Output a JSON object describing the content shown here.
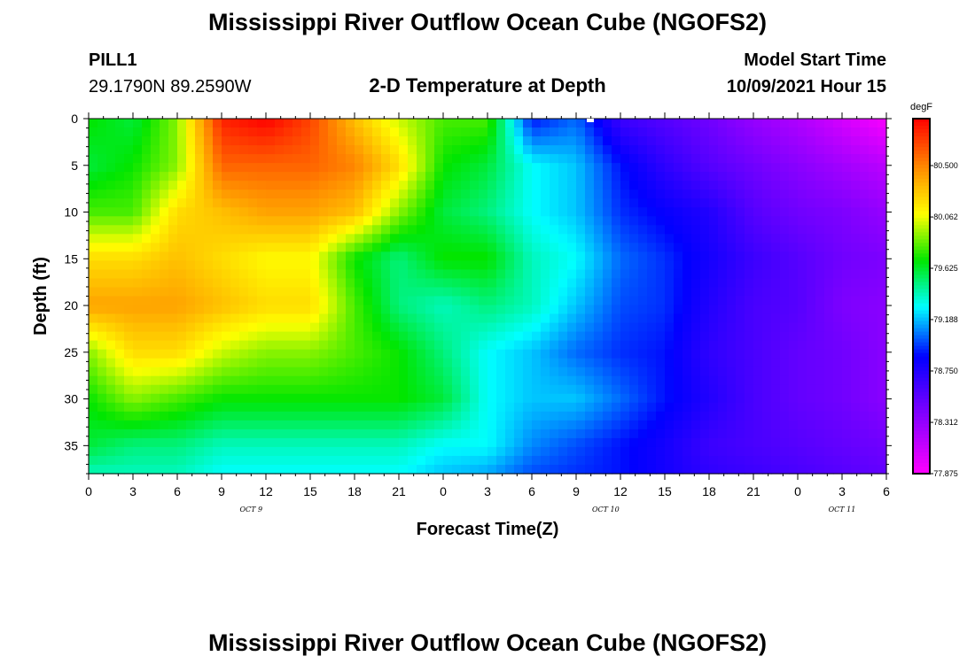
{
  "header": {
    "title_top": "Mississippi River Outflow Ocean Cube (NGOFS2)",
    "station": "PILL1",
    "coords": "29.1790N  89.2590W",
    "subtitle": "2-D Temperature at Depth",
    "model_start_label": "Model Start Time",
    "model_start_value": "10/09/2021 Hour 15",
    "title_bottom": "Mississippi River Outflow Ocean Cube (NGOFS2)"
  },
  "chart_data": {
    "type": "heatmap",
    "xlabel": "Forecast Time(Z)",
    "ylabel": "Depth (ft)",
    "x_ticks": [
      "0",
      "3",
      "6",
      "9",
      "12",
      "15",
      "18",
      "21",
      "0",
      "3",
      "6",
      "9",
      "12",
      "15",
      "18",
      "21",
      "0",
      "3",
      "6"
    ],
    "date_labels": [
      {
        "text": "OCT 9",
        "at_hours": 11
      },
      {
        "text": "OCT 10",
        "at_hours": 35
      },
      {
        "text": "OCT 11",
        "at_hours": 51
      }
    ],
    "x_range_hours": [
      0,
      54
    ],
    "y_ticks": [
      0,
      5,
      10,
      15,
      20,
      25,
      30,
      35
    ],
    "ylim": [
      0,
      38
    ],
    "colorbar": {
      "unit": "degF",
      "ticks": [
        "80.500",
        "80.062",
        "79.625",
        "79.188",
        "78.750",
        "78.312",
        "77.875"
      ],
      "min": 77.875,
      "max": 80.9
    },
    "temperature_grid": {
      "hours": [
        0,
        3,
        6,
        9,
        12,
        15,
        18,
        21,
        24,
        27,
        30,
        33,
        36,
        39,
        42,
        45,
        48,
        51,
        54
      ],
      "depths": [
        0,
        5,
        10,
        15,
        20,
        25,
        30,
        35,
        38
      ],
      "values": [
        [
          79.7,
          79.6,
          79.8,
          80.2,
          80.4,
          79.9,
          79.7,
          79.6,
          79.4
        ],
        [
          79.6,
          79.7,
          79.8,
          80.2,
          80.4,
          80.2,
          79.9,
          79.5,
          79.4
        ],
        [
          79.9,
          79.9,
          80.2,
          80.3,
          80.4,
          80.2,
          79.8,
          79.5,
          79.4
        ],
        [
          80.8,
          80.6,
          80.3,
          80.2,
          80.3,
          80.0,
          79.7,
          79.4,
          79.3
        ],
        [
          80.9,
          80.6,
          80.4,
          80.1,
          80.2,
          79.9,
          79.7,
          79.4,
          79.3
        ],
        [
          80.7,
          80.6,
          80.4,
          80.1,
          80.2,
          79.9,
          79.7,
          79.4,
          79.3
        ],
        [
          80.3,
          80.5,
          80.3,
          79.7,
          79.8,
          79.8,
          79.7,
          79.4,
          79.3
        ],
        [
          80.0,
          80.2,
          79.9,
          79.5,
          79.5,
          79.7,
          79.7,
          79.4,
          79.3
        ],
        [
          79.8,
          79.7,
          79.6,
          79.7,
          79.4,
          79.5,
          79.6,
          79.3,
          79.2
        ],
        [
          79.8,
          79.6,
          79.5,
          79.7,
          79.5,
          79.3,
          79.3,
          79.3,
          79.15
        ],
        [
          78.9,
          79.3,
          79.3,
          79.4,
          79.4,
          79.2,
          79.2,
          79.1,
          79.0
        ],
        [
          79.05,
          79.2,
          79.2,
          79.3,
          79.2,
          79.05,
          79.2,
          79.0,
          78.95
        ],
        [
          78.65,
          78.9,
          78.95,
          79.05,
          79.0,
          78.95,
          79.05,
          78.9,
          78.9
        ],
        [
          78.55,
          78.7,
          78.85,
          78.95,
          78.95,
          78.9,
          78.9,
          78.8,
          78.8
        ],
        [
          78.45,
          78.55,
          78.75,
          78.8,
          78.75,
          78.7,
          78.75,
          78.65,
          78.7
        ],
        [
          78.3,
          78.45,
          78.55,
          78.65,
          78.6,
          78.6,
          78.6,
          78.6,
          78.65
        ],
        [
          78.2,
          78.35,
          78.45,
          78.55,
          78.55,
          78.5,
          78.5,
          78.55,
          78.6
        ],
        [
          78.05,
          78.25,
          78.4,
          78.45,
          78.4,
          78.45,
          78.45,
          78.5,
          78.55
        ],
        [
          77.9,
          78.15,
          78.3,
          78.4,
          78.35,
          78.35,
          78.35,
          78.45,
          78.5
        ]
      ]
    }
  }
}
